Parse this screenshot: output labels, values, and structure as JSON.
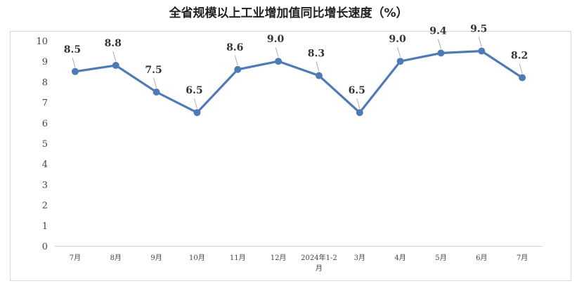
{
  "chart_data": {
    "type": "line",
    "title": "全省规模以上工业增加值同比增长速度（%）",
    "categories": [
      "7月",
      "8月",
      "9月",
      "10月",
      "11月",
      "12月",
      "2024年1-2月",
      "3月",
      "4月",
      "5月",
      "6月",
      "7月"
    ],
    "series": [
      {
        "values": [
          8.5,
          8.8,
          7.5,
          6.5,
          8.6,
          9.0,
          8.3,
          6.5,
          9.0,
          9.4,
          9.5,
          8.2
        ]
      }
    ],
    "data_labels": [
      "8.5",
      "8.8",
      "7.5",
      "6.5",
      "8.6",
      "9.0",
      "8.3",
      "6.5",
      "9.0",
      "9.4",
      "9.5",
      "8.2"
    ],
    "ylim": [
      0,
      10
    ],
    "yticks": [
      0,
      1,
      2,
      3,
      4,
      5,
      6,
      7,
      8,
      9,
      10
    ],
    "grid": false,
    "legend": "none",
    "line_color": "#4f7bb5"
  }
}
